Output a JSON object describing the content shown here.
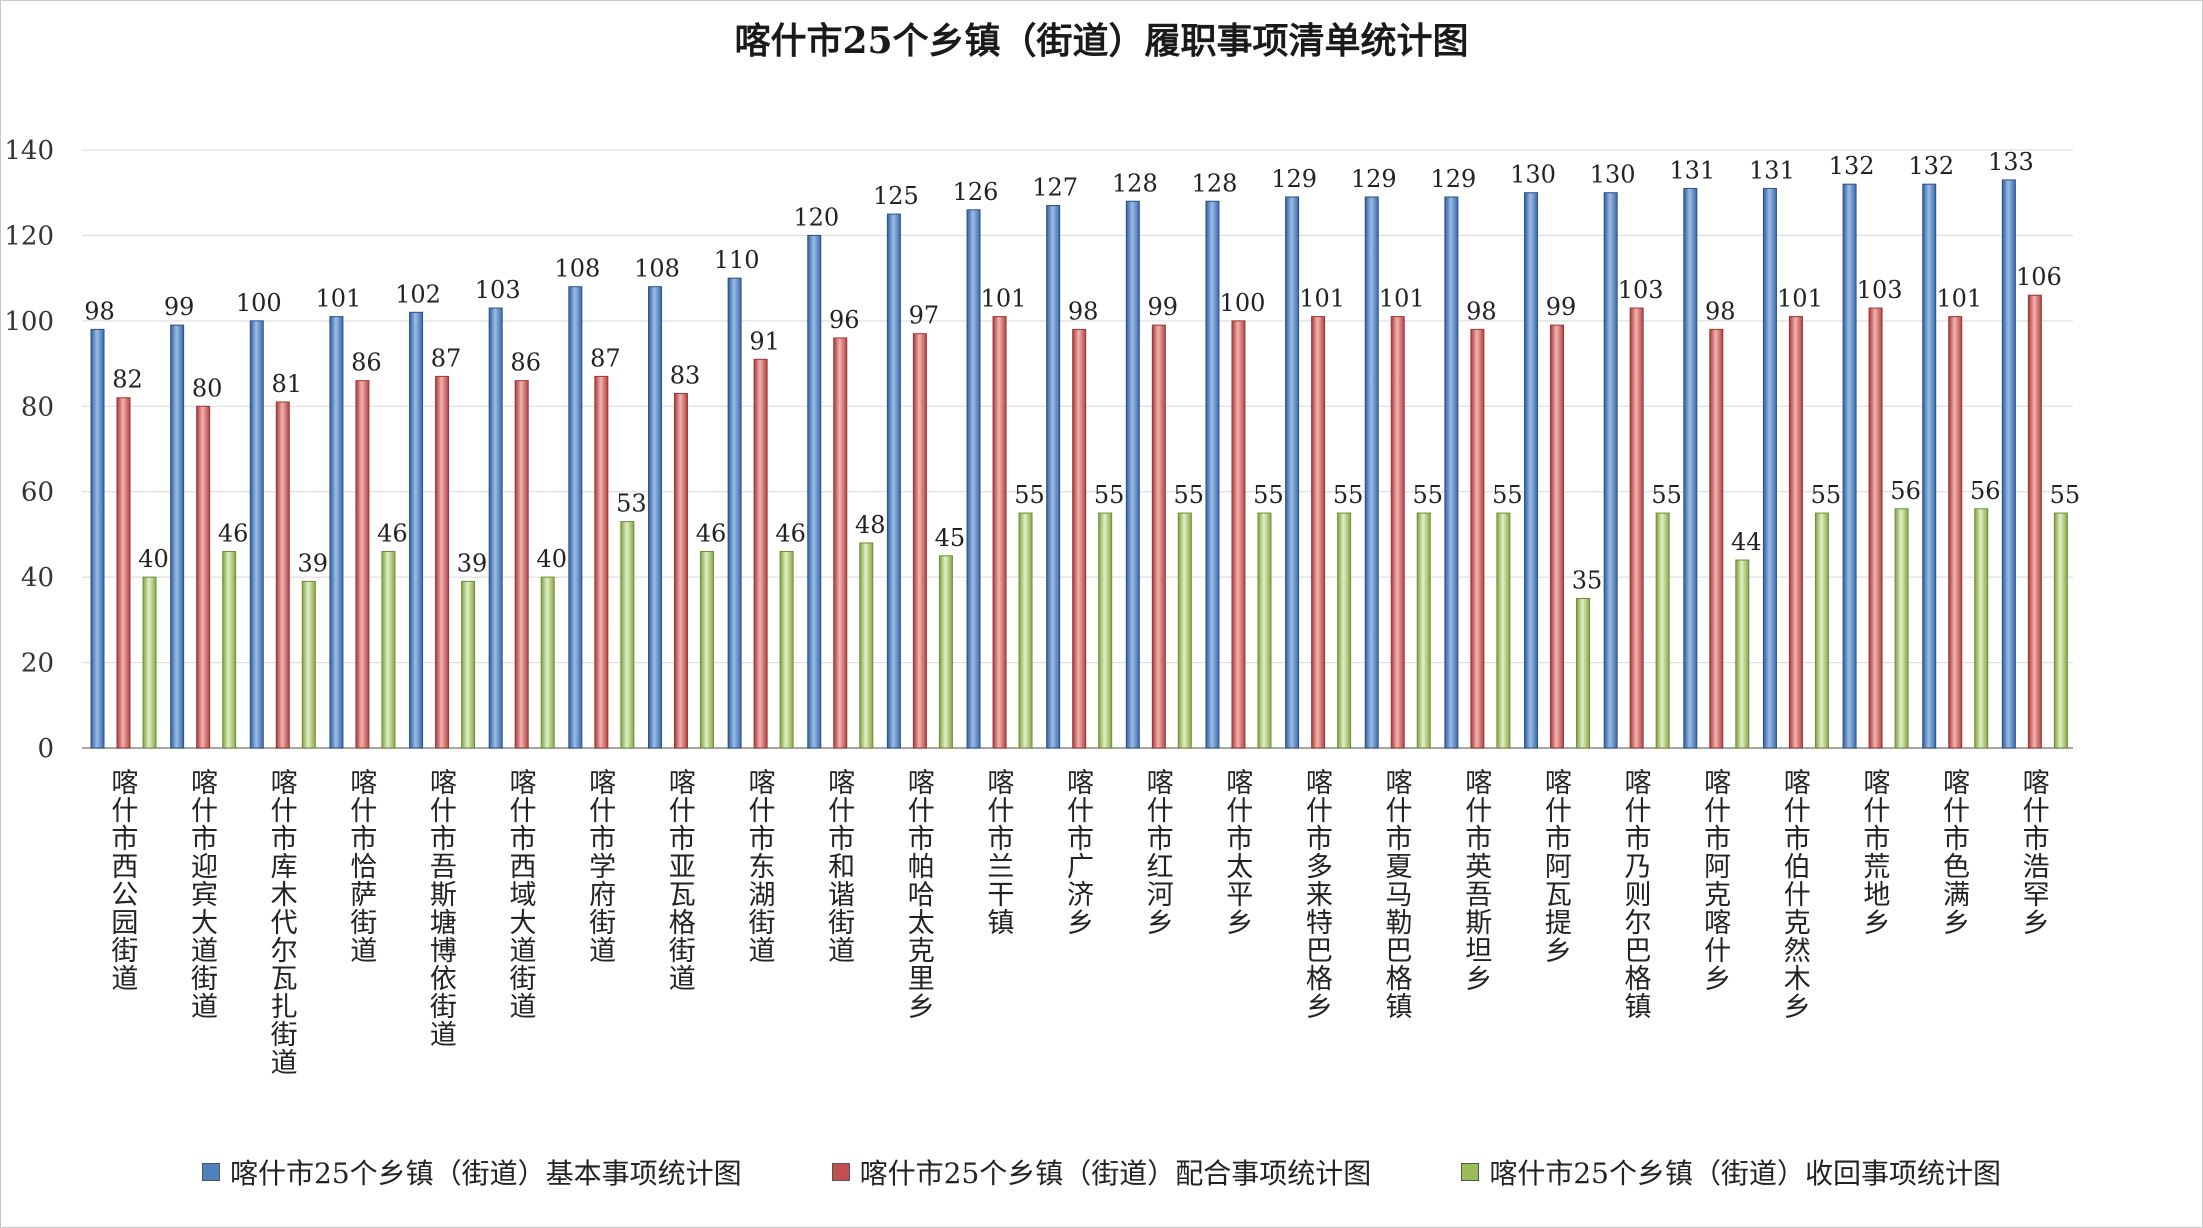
{
  "chart_data": {
    "type": "bar",
    "title": "喀什市25个乡镇（街道）履职事项清单统计图",
    "xlabel": "",
    "ylabel": "",
    "ylim": [
      0,
      140
    ],
    "yticks": [
      0,
      20,
      40,
      60,
      80,
      100,
      120,
      140
    ],
    "grid": true,
    "legend_position": "bottom",
    "categories": [
      "喀什市西公园街道",
      "喀什市迎宾大道街道",
      "喀什市库木代尔瓦扎街道",
      "喀什市恰萨街道",
      "喀什市吾斯塘博依街道",
      "喀什市西域大道街道",
      "喀什市学府街道",
      "喀什市亚瓦格街道",
      "喀什市东湖街道",
      "喀什市和谐街道",
      "喀什市帕哈太克里乡",
      "喀什市兰干镇",
      "喀什市广济乡",
      "喀什市红河乡",
      "喀什市太平乡",
      "喀什市多来特巴格乡",
      "喀什市夏马勒巴格镇",
      "喀什市英吾斯坦乡",
      "喀什市阿瓦提乡",
      "喀什市乃则尔巴格镇",
      "喀什市阿克喀什乡",
      "喀什市伯什克然木乡",
      "喀什市荒地乡",
      "喀什市色满乡",
      "喀什市浩罕乡"
    ],
    "series": [
      {
        "name": "喀什市25个乡镇（街道）基本事项统计图",
        "color": "#4f81bd",
        "values": [
          98,
          99,
          100,
          101,
          102,
          103,
          108,
          108,
          110,
          120,
          125,
          126,
          127,
          128,
          128,
          129,
          129,
          129,
          130,
          130,
          131,
          131,
          132,
          132,
          133
        ]
      },
      {
        "name": "喀什市25个乡镇（街道）配合事项统计图",
        "color": "#c0504d",
        "values": [
          82,
          80,
          81,
          86,
          87,
          86,
          87,
          83,
          91,
          96,
          97,
          101,
          98,
          99,
          100,
          101,
          101,
          98,
          99,
          103,
          98,
          101,
          103,
          101,
          106
        ]
      },
      {
        "name": "喀什市25个乡镇（街道）收回事项统计图",
        "color": "#9bbb59",
        "values": [
          40,
          46,
          39,
          46,
          39,
          40,
          53,
          46,
          46,
          48,
          45,
          55,
          55,
          55,
          55,
          55,
          55,
          55,
          35,
          55,
          44,
          55,
          56,
          56,
          55
        ]
      }
    ]
  }
}
